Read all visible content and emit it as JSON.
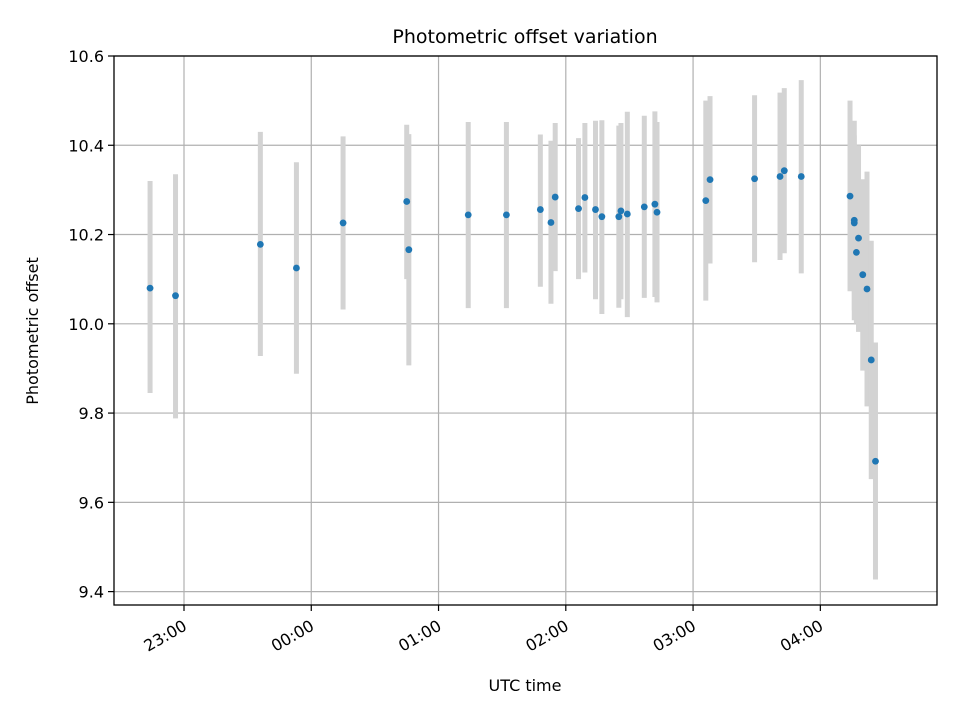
{
  "chart_data": {
    "type": "scatter",
    "title": "Photometric offset variation",
    "xlabel": "UTC time",
    "ylabel": "Photometric offset",
    "x_unit": "UTC time (HH:MM)",
    "xlim": [
      "22:27",
      "04:55"
    ],
    "ylim": [
      9.37,
      10.6
    ],
    "x_ticks": [
      "23:00",
      "00:00",
      "01:00",
      "02:00",
      "03:00",
      "04:00"
    ],
    "y_ticks": [
      "9.4",
      "9.6",
      "9.8",
      "10.0",
      "10.2",
      "10.4",
      "10.6"
    ],
    "grid": true,
    "point_color": "#1f77b4",
    "errorbar_color": "#d3d3d3",
    "points": [
      {
        "x": "22:44",
        "y": 10.08,
        "lo": 9.845,
        "hi": 10.32
      },
      {
        "x": "22:56",
        "y": 10.063,
        "lo": 9.788,
        "hi": 10.335
      },
      {
        "x": "23:36",
        "y": 10.178,
        "lo": 9.928,
        "hi": 10.43
      },
      {
        "x": "23:53",
        "y": 10.125,
        "lo": 9.888,
        "hi": 10.362
      },
      {
        "x": "00:15",
        "y": 10.226,
        "lo": 10.032,
        "hi": 10.42
      },
      {
        "x": "00:45",
        "y": 10.274,
        "lo": 10.1,
        "hi": 10.446
      },
      {
        "x": "00:46",
        "y": 10.166,
        "lo": 9.907,
        "hi": 10.425
      },
      {
        "x": "01:14",
        "y": 10.244,
        "lo": 10.035,
        "hi": 10.452
      },
      {
        "x": "01:32",
        "y": 10.244,
        "lo": 10.035,
        "hi": 10.452
      },
      {
        "x": "01:48",
        "y": 10.256,
        "lo": 10.083,
        "hi": 10.424
      },
      {
        "x": "01:53",
        "y": 10.227,
        "lo": 10.045,
        "hi": 10.41
      },
      {
        "x": "01:55",
        "y": 10.284,
        "lo": 10.118,
        "hi": 10.45
      },
      {
        "x": "02:06",
        "y": 10.258,
        "lo": 10.1,
        "hi": 10.416
      },
      {
        "x": "02:09",
        "y": 10.283,
        "lo": 10.115,
        "hi": 10.45
      },
      {
        "x": "02:14",
        "y": 10.256,
        "lo": 10.055,
        "hi": 10.455
      },
      {
        "x": "02:17",
        "y": 10.24,
        "lo": 10.022,
        "hi": 10.456
      },
      {
        "x": "02:25",
        "y": 10.24,
        "lo": 10.036,
        "hi": 10.444
      },
      {
        "x": "02:26",
        "y": 10.253,
        "lo": 10.055,
        "hi": 10.45
      },
      {
        "x": "02:29",
        "y": 10.246,
        "lo": 10.015,
        "hi": 10.475
      },
      {
        "x": "02:37",
        "y": 10.262,
        "lo": 10.058,
        "hi": 10.466
      },
      {
        "x": "02:42",
        "y": 10.268,
        "lo": 10.06,
        "hi": 10.476
      },
      {
        "x": "02:43",
        "y": 10.25,
        "lo": 10.048,
        "hi": 10.452
      },
      {
        "x": "03:06",
        "y": 10.276,
        "lo": 10.052,
        "hi": 10.5
      },
      {
        "x": "03:08",
        "y": 10.323,
        "lo": 10.135,
        "hi": 10.51
      },
      {
        "x": "03:29",
        "y": 10.325,
        "lo": 10.138,
        "hi": 10.512
      },
      {
        "x": "03:41",
        "y": 10.33,
        "lo": 10.143,
        "hi": 10.518
      },
      {
        "x": "03:43",
        "y": 10.343,
        "lo": 10.158,
        "hi": 10.528
      },
      {
        "x": "03:51",
        "y": 10.33,
        "lo": 10.113,
        "hi": 10.546
      },
      {
        "x": "04:14",
        "y": 10.286,
        "lo": 10.073,
        "hi": 10.5
      },
      {
        "x": "04:16",
        "y": 10.232,
        "lo": 10.008,
        "hi": 10.455
      },
      {
        "x": "04:16",
        "y": 10.226,
        "lo": 10.03,
        "hi": 10.422
      },
      {
        "x": "04:17",
        "y": 10.16,
        "lo": 10.0,
        "hi": 10.32
      },
      {
        "x": "04:18",
        "y": 10.192,
        "lo": 9.982,
        "hi": 10.4
      },
      {
        "x": "04:20",
        "y": 10.11,
        "lo": 9.895,
        "hi": 10.324
      },
      {
        "x": "04:22",
        "y": 10.078,
        "lo": 9.815,
        "hi": 10.341
      },
      {
        "x": "04:24",
        "y": 9.919,
        "lo": 9.652,
        "hi": 10.186
      },
      {
        "x": "04:26",
        "y": 9.692,
        "lo": 9.427,
        "hi": 9.958
      }
    ]
  }
}
